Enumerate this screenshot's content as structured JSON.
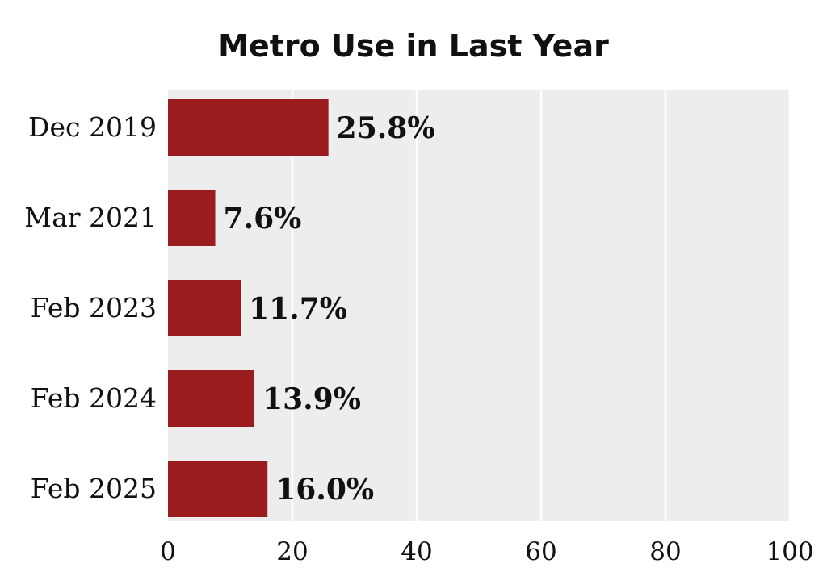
{
  "chart_data": {
    "type": "bar",
    "orientation": "horizontal",
    "title": "Metro Use in Last Year",
    "xlabel": "",
    "ylabel": "",
    "categories": [
      "Dec 2019",
      "Mar 2021",
      "Feb 2023",
      "Feb 2024",
      "Feb 2025"
    ],
    "values": [
      25.8,
      7.6,
      11.7,
      13.9,
      16.0
    ],
    "value_labels": [
      "25.8%",
      "7.6%",
      "11.7%",
      "13.9%",
      "16.0%"
    ],
    "xlim": [
      0,
      100
    ],
    "x_ticks": [
      0,
      20,
      40,
      60,
      80,
      100
    ],
    "x_tick_labels": [
      "0",
      "20",
      "40",
      "60",
      "80",
      "100"
    ],
    "grid": "vertical",
    "legend": "none",
    "colors": {
      "bar": "#9b1c1f",
      "plot_background": "#ededed",
      "grid": "#ffffff",
      "text": "#111111"
    }
  }
}
